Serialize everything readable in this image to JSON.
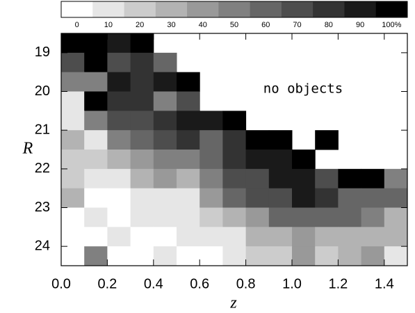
{
  "chart_data": {
    "type": "heatmap",
    "x_label": "z",
    "y_label": "R",
    "annotation": "no objects",
    "x_bins": [
      0,
      0.1,
      0.2,
      0.3,
      0.4,
      0.5,
      0.6,
      0.7,
      0.8,
      0.9,
      1.0,
      1.1,
      1.2,
      1.3,
      1.4,
      1.5
    ],
    "y_bins": [
      18.5,
      19.0,
      19.5,
      20.0,
      20.5,
      21.0,
      21.5,
      22.0,
      22.5,
      23.0,
      23.5,
      24.0,
      24.5
    ],
    "values": [
      [
        100,
        100,
        90,
        100,
        null,
        null,
        null,
        null,
        null,
        null,
        null,
        null,
        null,
        null,
        null
      ],
      [
        70,
        100,
        70,
        80,
        60,
        null,
        null,
        null,
        null,
        null,
        null,
        null,
        null,
        null,
        null
      ],
      [
        50,
        50,
        90,
        80,
        90,
        100,
        null,
        null,
        null,
        null,
        null,
        null,
        null,
        null,
        null
      ],
      [
        10,
        100,
        80,
        80,
        50,
        70,
        null,
        null,
        null,
        null,
        null,
        null,
        null,
        null,
        null
      ],
      [
        10,
        50,
        70,
        70,
        80,
        90,
        90,
        100,
        null,
        null,
        null,
        null,
        null,
        null,
        null
      ],
      [
        30,
        10,
        50,
        60,
        70,
        80,
        60,
        80,
        100,
        100,
        null,
        100,
        null,
        null,
        null
      ],
      [
        20,
        20,
        30,
        40,
        50,
        50,
        60,
        80,
        90,
        90,
        100,
        null,
        null,
        null,
        null
      ],
      [
        20,
        10,
        10,
        30,
        40,
        30,
        50,
        70,
        70,
        90,
        90,
        70,
        100,
        100,
        50
      ],
      [
        30,
        0,
        0,
        10,
        10,
        10,
        40,
        60,
        70,
        70,
        90,
        80,
        60,
        60,
        60
      ],
      [
        0,
        10,
        0,
        10,
        10,
        10,
        20,
        30,
        40,
        60,
        60,
        60,
        60,
        50,
        30
      ],
      [
        0,
        0,
        10,
        0,
        0,
        10,
        10,
        10,
        30,
        30,
        40,
        30,
        30,
        30,
        30
      ],
      [
        0,
        50,
        0,
        0,
        10,
        0,
        0,
        10,
        20,
        20,
        40,
        20,
        30,
        40,
        10
      ]
    ],
    "xlim": [
      0,
      1.5
    ],
    "ylim": [
      18.5,
      24.5
    ],
    "y_inverted": true,
    "xticks": [
      {
        "value": 0,
        "label": "0.0"
      },
      0.2,
      0.4,
      0.6,
      0.8,
      {
        "value": 1,
        "label": "1.0"
      },
      1.2,
      1.4
    ],
    "yticks": [
      19,
      20,
      21,
      22,
      23,
      24
    ],
    "colors": [
      "#ffffff",
      "#000000"
    ],
    "color_range": [
      0,
      100
    ],
    "colorbar_ticks": [
      0,
      10,
      20,
      30,
      40,
      50,
      60,
      70,
      80,
      90,
      {
        "value": 100,
        "label": "100%"
      }
    ]
  }
}
